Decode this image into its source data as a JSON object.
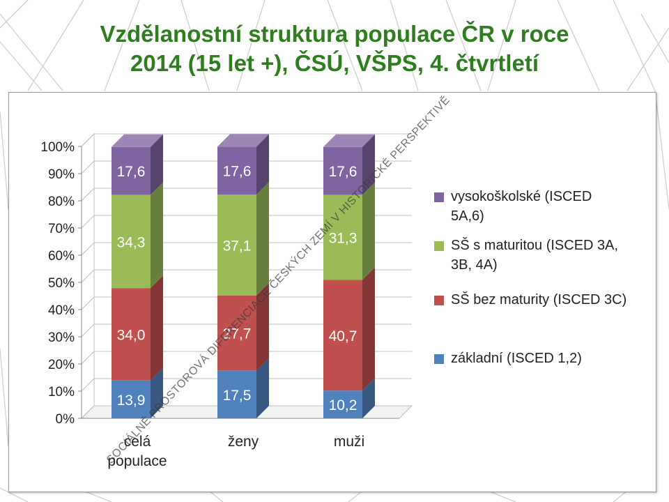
{
  "title": {
    "line1": "Vzdělanostní struktura populace ČR v roce",
    "line2": "2014 (15 let +), ČSÚ, VŠPS, 4. čtvrtletí"
  },
  "watermark": "SOCIÁLNĚ PROSTOROVÁ DIFERENCIACE ČESKÝCH ZEMÍ V HISTORICKÉ PERSPEKTIVĚ",
  "chart_data": {
    "type": "bar",
    "stacked": true,
    "three_d": true,
    "categories": [
      [
        "celá",
        "populace"
      ],
      [
        "ženy"
      ],
      [
        "muži"
      ]
    ],
    "series": [
      {
        "name": "základní (ISCED 1,2)",
        "values": [
          13.9,
          17.5,
          10.2
        ],
        "labels": [
          "13,9",
          "17,5",
          "10,2"
        ],
        "color": "#4f81bd"
      },
      {
        "name": "SŠ bez maturity (ISCED 3C)",
        "values": [
          34.0,
          27.7,
          40.7
        ],
        "labels": [
          "34,0",
          "27,7",
          "40,7"
        ],
        "color": "#c0504d"
      },
      {
        "name": "SŠ s maturitou (ISCED 3A, 3B, 4A)",
        "values": [
          34.3,
          37.1,
          31.3
        ],
        "labels": [
          "34,3",
          "37,1",
          "31,3"
        ],
        "color": "#9bbb59"
      },
      {
        "name": "vysokoškolské (ISCED 5A,6)",
        "values": [
          17.6,
          17.6,
          17.6
        ],
        "labels": [
          "17,6",
          "17,6",
          "17,6"
        ],
        "color": "#8064a2"
      }
    ],
    "yticks": [
      "0%",
      "10%",
      "20%",
      "30%",
      "40%",
      "50%",
      "60%",
      "70%",
      "80%",
      "90%",
      "100%"
    ],
    "ylim": [
      0,
      100
    ],
    "grid": true,
    "legend_position": "right",
    "legend_entries": [
      {
        "lines": [
          "vysokoškolské (ISCED",
          "5A,6)"
        ],
        "color": "#8064a2"
      },
      {
        "lines": [
          "SŠ s maturitou (ISCED 3A,",
          "3B, 4A)"
        ],
        "color": "#9bbb59"
      },
      {
        "lines": [
          "SŠ bez maturity (ISCED 3C)"
        ],
        "color": "#c0504d"
      },
      {
        "lines": [
          "základní (ISCED 1,2)"
        ],
        "color": "#4f81bd"
      }
    ]
  }
}
